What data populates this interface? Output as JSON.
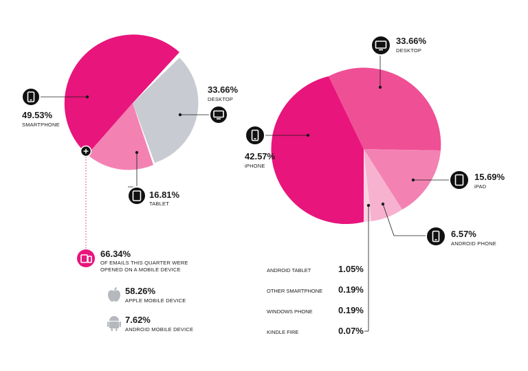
{
  "colors": {
    "pink_dark": "#e8157c",
    "pink_mid": "#ef4f95",
    "pink_light": "#f382b3",
    "pink_pale": "#f7b2d0",
    "grey": "#c8cbd1",
    "badge": "#111111",
    "mobile_badge": "#e8157c"
  },
  "chart_data": [
    {
      "type": "pie",
      "categories": [
        "SMARTPHONE",
        "DESKTOP",
        "TABLET"
      ],
      "values": [
        49.53,
        33.66,
        16.81
      ],
      "labels": [
        {
          "pct": "49.53%",
          "name": "SMARTPHONE",
          "icon": "smartphone-icon"
        },
        {
          "pct": "33.66%",
          "name": "DESKTOP",
          "icon": "desktop-icon"
        },
        {
          "pct": "16.81%",
          "name": "TABLET",
          "icon": "tablet-icon"
        }
      ]
    },
    {
      "type": "pie",
      "categories": [
        "iPHONE",
        "DESKTOP",
        "iPAD",
        "ANDROID PHONE",
        "ANDROID TABLET",
        "OTHER SMARTPHONE",
        "WINDOWS PHONE",
        "KINDLE FIRE"
      ],
      "values": [
        42.57,
        33.66,
        15.69,
        6.57,
        1.05,
        0.19,
        0.19,
        0.07
      ],
      "labels": [
        {
          "pct": "42.57%",
          "name": "iPHONE",
          "icon": "smartphone-icon"
        },
        {
          "pct": "33.66%",
          "name": "DESKTOP",
          "icon": "desktop-icon"
        },
        {
          "pct": "15.69%",
          "name": "iPAD",
          "icon": "tablet-icon"
        },
        {
          "pct": "6.57%",
          "name": "ANDROID PHONE",
          "icon": "smartphone-icon"
        }
      ],
      "table": [
        {
          "name": "ANDROID TABLET",
          "pct": "1.05%"
        },
        {
          "name": "OTHER SMARTPHONE",
          "pct": "0.19%"
        },
        {
          "name": "WINDOWS PHONE",
          "pct": "0.19%"
        },
        {
          "name": "KINDLE FIRE",
          "pct": "0.07%"
        }
      ]
    }
  ],
  "mobile_summary": {
    "pct": "66.34%",
    "line1": "OF EMAILS THIS QUARTER WERE",
    "line2": "OPENED ON A MOBILE DEVICE",
    "icon": "mobile-devices-icon",
    "items": [
      {
        "pct": "58.26%",
        "name": "APPLE MOBILE DEVICE",
        "icon": "apple-icon"
      },
      {
        "pct": "7.62%",
        "name": "ANDROID MOBILE DEVICE",
        "icon": "android-icon"
      }
    ]
  }
}
